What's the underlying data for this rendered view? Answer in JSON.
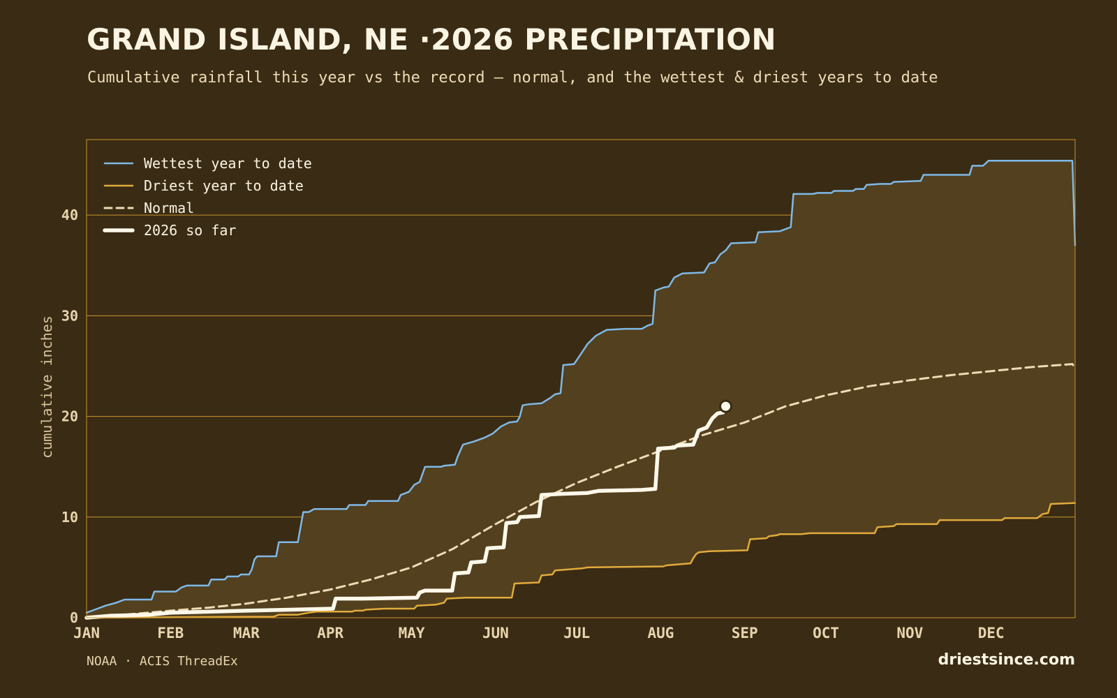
{
  "header": {
    "title": "GRAND ISLAND, NE ·2026 PRECIPITATION",
    "subtitle": "Cumulative rainfall this year vs the record — normal, and the wettest & driest years to date"
  },
  "footer": {
    "source": "NOAA · ACIS ThreadEx",
    "brand": "driestsince.com"
  },
  "colors": {
    "background": "#3a2b14",
    "band_fill": "#53401f",
    "grid": "#c8962e",
    "wettest": "#7fb9e6",
    "driest": "#e2ab3c",
    "normal": "#ecdcb4",
    "current": "#fdf8ea"
  },
  "chart_data": {
    "type": "line",
    "ylabel": "cumulative inches",
    "xlabel": "",
    "ylim": [
      0,
      47.5
    ],
    "xlim": [
      1,
      366
    ],
    "grid": "horizontal",
    "legend_position": "top-left",
    "x_ticks": [
      {
        "label": "JAN",
        "day": 1
      },
      {
        "label": "FEB",
        "day": 32
      },
      {
        "label": "MAR",
        "day": 60
      },
      {
        "label": "APR",
        "day": 91
      },
      {
        "label": "MAY",
        "day": 121
      },
      {
        "label": "JUN",
        "day": 152
      },
      {
        "label": "JUL",
        "day": 182
      },
      {
        "label": "AUG",
        "day": 213
      },
      {
        "label": "SEP",
        "day": 244
      },
      {
        "label": "OCT",
        "day": 274
      },
      {
        "label": "NOV",
        "day": 305
      },
      {
        "label": "DEC",
        "day": 335
      }
    ],
    "y_ticks": [
      0,
      10,
      20,
      30,
      40
    ],
    "series": [
      {
        "name": "Wettest year to date",
        "style": "solid",
        "points": [
          [
            1,
            0.5
          ],
          [
            4,
            0.8
          ],
          [
            8,
            1.2
          ],
          [
            12,
            1.5
          ],
          [
            15,
            1.8
          ],
          [
            25,
            1.8
          ],
          [
            26,
            2.6
          ],
          [
            34,
            2.6
          ],
          [
            36,
            3.0
          ],
          [
            38,
            3.2
          ],
          [
            46,
            3.2
          ],
          [
            47,
            3.8
          ],
          [
            52,
            3.8
          ],
          [
            53,
            4.1
          ],
          [
            57,
            4.1
          ],
          [
            58,
            4.3
          ],
          [
            61,
            4.3
          ],
          [
            62,
            4.8
          ],
          [
            63,
            5.8
          ],
          [
            64,
            6.1
          ],
          [
            71,
            6.1
          ],
          [
            72,
            7.5
          ],
          [
            79,
            7.5
          ],
          [
            80,
            9.0
          ],
          [
            81,
            10.5
          ],
          [
            83,
            10.5
          ],
          [
            85,
            10.8
          ],
          [
            97,
            10.8
          ],
          [
            98,
            11.2
          ],
          [
            104,
            11.2
          ],
          [
            105,
            11.6
          ],
          [
            116,
            11.6
          ],
          [
            117,
            12.2
          ],
          [
            120,
            12.5
          ],
          [
            122,
            13.2
          ],
          [
            124,
            13.5
          ],
          [
            126,
            15.0
          ],
          [
            132,
            15.0
          ],
          [
            133,
            15.1
          ],
          [
            137,
            15.2
          ],
          [
            138,
            16.0
          ],
          [
            140,
            17.2
          ],
          [
            144,
            17.5
          ],
          [
            148,
            17.9
          ],
          [
            151,
            18.3
          ],
          [
            154,
            19.0
          ],
          [
            157,
            19.4
          ],
          [
            160,
            19.5
          ],
          [
            161,
            20.0
          ],
          [
            162,
            21.1
          ],
          [
            164,
            21.2
          ],
          [
            169,
            21.3
          ],
          [
            172,
            21.8
          ],
          [
            174,
            22.2
          ],
          [
            176,
            22.3
          ],
          [
            177,
            25.1
          ],
          [
            181,
            25.2
          ],
          [
            183,
            26.0
          ],
          [
            186,
            27.2
          ],
          [
            189,
            28.0
          ],
          [
            193,
            28.6
          ],
          [
            200,
            28.7
          ],
          [
            206,
            28.7
          ],
          [
            208,
            29.0
          ],
          [
            209,
            29.1
          ],
          [
            210,
            29.2
          ],
          [
            211,
            32.5
          ],
          [
            214,
            32.8
          ],
          [
            216,
            32.9
          ],
          [
            218,
            33.8
          ],
          [
            221,
            34.2
          ],
          [
            229,
            34.3
          ],
          [
            231,
            35.2
          ],
          [
            233,
            35.3
          ],
          [
            235,
            36.1
          ],
          [
            237,
            36.5
          ],
          [
            239,
            37.2
          ],
          [
            248,
            37.3
          ],
          [
            249,
            38.3
          ],
          [
            257,
            38.4
          ],
          [
            259,
            38.6
          ],
          [
            261,
            38.8
          ],
          [
            262,
            42.1
          ],
          [
            269,
            42.1
          ],
          [
            271,
            42.2
          ],
          [
            276,
            42.2
          ],
          [
            277,
            42.4
          ],
          [
            284,
            42.4
          ],
          [
            285,
            42.6
          ],
          [
            288,
            42.6
          ],
          [
            289,
            43.0
          ],
          [
            294,
            43.1
          ],
          [
            298,
            43.1
          ],
          [
            299,
            43.3
          ],
          [
            309,
            43.4
          ],
          [
            310,
            44.0
          ],
          [
            327,
            44.0
          ],
          [
            328,
            44.9
          ],
          [
            332,
            44.9
          ],
          [
            334,
            45.4
          ],
          [
            365,
            45.4
          ],
          [
            366,
            37.0
          ]
        ]
      },
      {
        "name": "Driest year to date",
        "style": "solid",
        "points": [
          [
            1,
            0.0
          ],
          [
            60,
            0.1
          ],
          [
            70,
            0.1
          ],
          [
            72,
            0.3
          ],
          [
            79,
            0.3
          ],
          [
            83,
            0.5
          ],
          [
            86,
            0.6
          ],
          [
            99,
            0.6
          ],
          [
            100,
            0.7
          ],
          [
            103,
            0.7
          ],
          [
            104,
            0.8
          ],
          [
            111,
            0.9
          ],
          [
            122,
            0.9
          ],
          [
            123,
            1.2
          ],
          [
            130,
            1.3
          ],
          [
            133,
            1.5
          ],
          [
            134,
            1.9
          ],
          [
            141,
            2.0
          ],
          [
            158,
            2.0
          ],
          [
            159,
            3.4
          ],
          [
            168,
            3.5
          ],
          [
            169,
            4.2
          ],
          [
            173,
            4.3
          ],
          [
            174,
            4.7
          ],
          [
            184,
            4.9
          ],
          [
            186,
            5.0
          ],
          [
            214,
            5.1
          ],
          [
            215,
            5.2
          ],
          [
            224,
            5.4
          ],
          [
            225,
            5.9
          ],
          [
            226,
            6.3
          ],
          [
            227,
            6.5
          ],
          [
            231,
            6.6
          ],
          [
            245,
            6.7
          ],
          [
            246,
            7.8
          ],
          [
            252,
            7.9
          ],
          [
            253,
            8.1
          ],
          [
            256,
            8.2
          ],
          [
            257,
            8.3
          ],
          [
            265,
            8.3
          ],
          [
            268,
            8.4
          ],
          [
            292,
            8.4
          ],
          [
            293,
            9.0
          ],
          [
            299,
            9.1
          ],
          [
            300,
            9.3
          ],
          [
            315,
            9.3
          ],
          [
            316,
            9.7
          ],
          [
            339,
            9.7
          ],
          [
            340,
            9.9
          ],
          [
            352,
            9.9
          ],
          [
            354,
            10.3
          ],
          [
            356,
            10.4
          ],
          [
            357,
            11.3
          ],
          [
            366,
            11.4
          ]
        ]
      },
      {
        "name": "Normal",
        "style": "dashed",
        "points": [
          [
            1,
            0.1
          ],
          [
            15,
            0.3
          ],
          [
            32,
            0.7
          ],
          [
            46,
            1.0
          ],
          [
            60,
            1.4
          ],
          [
            75,
            2.0
          ],
          [
            91,
            2.8
          ],
          [
            106,
            3.8
          ],
          [
            121,
            5.0
          ],
          [
            136,
            6.8
          ],
          [
            152,
            9.3
          ],
          [
            167,
            11.5
          ],
          [
            182,
            13.4
          ],
          [
            197,
            15.0
          ],
          [
            213,
            16.6
          ],
          [
            228,
            18.1
          ],
          [
            244,
            19.4
          ],
          [
            259,
            21.0
          ],
          [
            274,
            22.1
          ],
          [
            290,
            23.0
          ],
          [
            305,
            23.6
          ],
          [
            320,
            24.1
          ],
          [
            335,
            24.5
          ],
          [
            350,
            24.9
          ],
          [
            365,
            25.2
          ],
          [
            366,
            24.8
          ]
        ]
      },
      {
        "name": "2026 so far",
        "style": "bold",
        "points": [
          [
            1,
            0.0
          ],
          [
            10,
            0.2
          ],
          [
            24,
            0.3
          ],
          [
            32,
            0.5
          ],
          [
            47,
            0.6
          ],
          [
            60,
            0.7
          ],
          [
            76,
            0.8
          ],
          [
            92,
            0.9
          ],
          [
            93,
            1.9
          ],
          [
            103,
            1.9
          ],
          [
            123,
            2.0
          ],
          [
            124,
            2.5
          ],
          [
            126,
            2.7
          ],
          [
            136,
            2.7
          ],
          [
            137,
            4.4
          ],
          [
            142,
            4.5
          ],
          [
            143,
            5.5
          ],
          [
            148,
            5.6
          ],
          [
            149,
            6.9
          ],
          [
            155,
            7.0
          ],
          [
            156,
            9.4
          ],
          [
            160,
            9.5
          ],
          [
            161,
            10.0
          ],
          [
            168,
            10.1
          ],
          [
            169,
            12.2
          ],
          [
            176,
            12.3
          ],
          [
            186,
            12.4
          ],
          [
            190,
            12.6
          ],
          [
            206,
            12.7
          ],
          [
            211,
            12.8
          ],
          [
            212,
            16.8
          ],
          [
            218,
            16.9
          ],
          [
            219,
            17.1
          ],
          [
            225,
            17.2
          ],
          [
            226,
            17.9
          ],
          [
            227,
            18.6
          ],
          [
            230,
            18.9
          ],
          [
            232,
            19.8
          ],
          [
            234,
            20.3
          ],
          [
            236,
            20.4
          ]
        ]
      }
    ],
    "current_marker": {
      "day": 237,
      "value": 21.0
    }
  }
}
